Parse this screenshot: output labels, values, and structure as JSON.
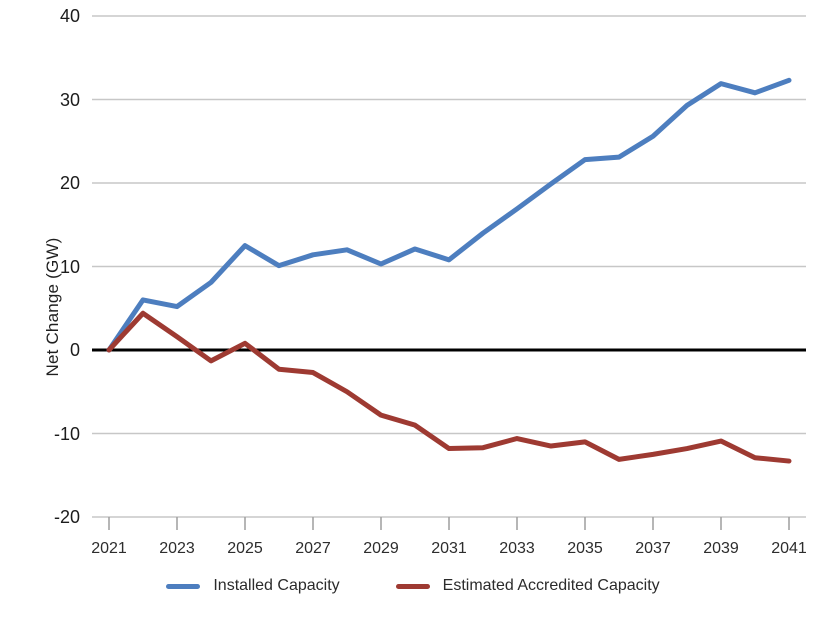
{
  "chart_data": {
    "type": "line",
    "title": "",
    "xlabel": "",
    "ylabel": "Net Change (GW)",
    "x": [
      2021,
      2022,
      2023,
      2024,
      2025,
      2026,
      2027,
      2028,
      2029,
      2030,
      2031,
      2032,
      2033,
      2034,
      2035,
      2036,
      2037,
      2038,
      2039,
      2040,
      2041
    ],
    "x_tick_labels": [
      "2021",
      "2023",
      "2025",
      "2027",
      "2029",
      "2031",
      "2033",
      "2035",
      "2037",
      "2039",
      "2041"
    ],
    "ylim": [
      -20,
      40
    ],
    "yticks": [
      40,
      30,
      20,
      10,
      0,
      -10,
      -20
    ],
    "grid": "horizontal",
    "zero_line": true,
    "legend_position": "bottom",
    "series": [
      {
        "name": "Installed Capacity",
        "color": "#4d7ebf",
        "values": [
          0,
          6,
          5.2,
          8.1,
          12.5,
          10.1,
          11.4,
          12,
          10.3,
          12.1,
          10.8,
          14,
          16.9,
          19.9,
          22.8,
          23.1,
          25.6,
          29.3,
          31.9,
          30.8,
          32.3
        ]
      },
      {
        "name": "Estimated Accredited Capacity",
        "color": "#9e3a32",
        "values": [
          0,
          4.4,
          1.6,
          -1.3,
          0.8,
          -2.3,
          -2.7,
          -5,
          -7.8,
          -9,
          -11.8,
          -11.7,
          -10.6,
          -11.5,
          -11,
          -13.1,
          -12.5,
          -11.8,
          -10.9,
          -12.9,
          -13.3
        ]
      }
    ]
  },
  "colors": {
    "gridline": "#c7c7c7",
    "zero_line": "#000000",
    "tick": "#9e9e9e",
    "axis_text": "#1c1c1c",
    "legend_text": "#2b2b2b",
    "background": "#ffffff"
  }
}
